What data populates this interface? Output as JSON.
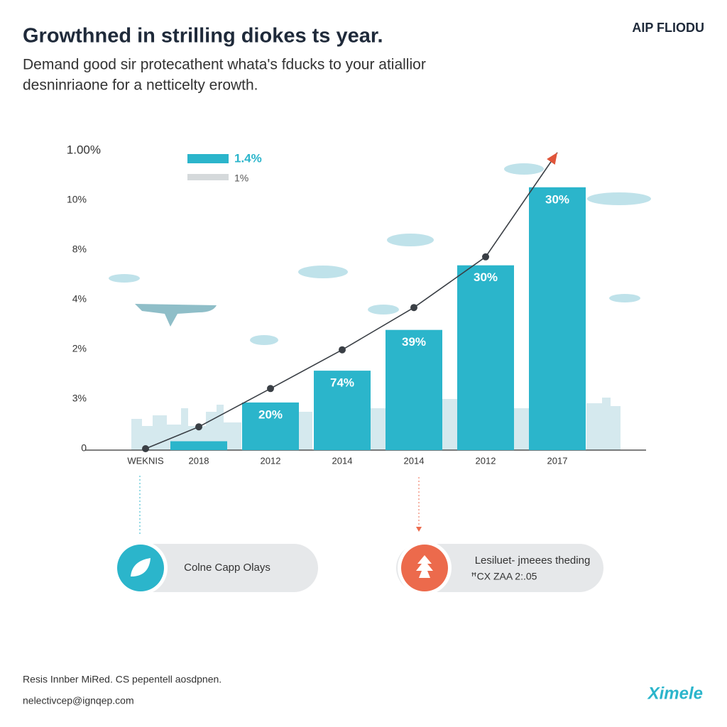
{
  "header": {
    "title": "Growthned in strilling diokes ts year.",
    "subtitle_lines": [
      "Demand good sir protecathent whata's fducks to your atiallior",
      "desninriaone for a netticelty erowth."
    ],
    "logo": "AIP FLIODU"
  },
  "chart_data": {
    "type": "bar",
    "categories": [
      "WEKNIS",
      "2018",
      "2012",
      "2014",
      "2014",
      "2012",
      "2017"
    ],
    "series": [
      {
        "name": "1.4%",
        "color": "#2bb5cb",
        "values": [
          null,
          0.15,
          0.93,
          1.57,
          2.39,
          3.69,
          5.26
        ],
        "value_labels": [
          null,
          null,
          "20%",
          "74%",
          "39%",
          "30%",
          "30%"
        ]
      },
      {
        "type": "line",
        "color": "#3a3f45",
        "values": [
          0,
          0.44,
          1.21,
          1.99,
          2.84,
          3.86,
          5.96
        ]
      }
    ],
    "legend": [
      {
        "label": "1.4%",
        "color": "#2bb5cb"
      },
      {
        "label": "1%",
        "color": "#d5d9db"
      }
    ],
    "ylim": [
      0,
      6
    ],
    "yticks": [
      0,
      {
        "value": 1,
        "label": "3%"
      },
      {
        "value": 2,
        "label": "2%"
      },
      {
        "value": 3,
        "label": "4%"
      },
      {
        "value": 4,
        "label": "8%"
      },
      {
        "value": 5,
        "label": "10%"
      },
      {
        "value": 6,
        "label": "1.00%"
      }
    ]
  },
  "callouts": [
    {
      "text": "Colne Capp Olays"
    },
    {
      "title": "Lesiluet- jmeees theding",
      "text": "ꟸCX ZAA 2:.05"
    }
  ],
  "footer": {
    "line1": "Resis Innber MiRed. CS pepentell aosdpnen.",
    "line2": "nelectivcep@ignqep.com",
    "brand": "Ximele"
  }
}
